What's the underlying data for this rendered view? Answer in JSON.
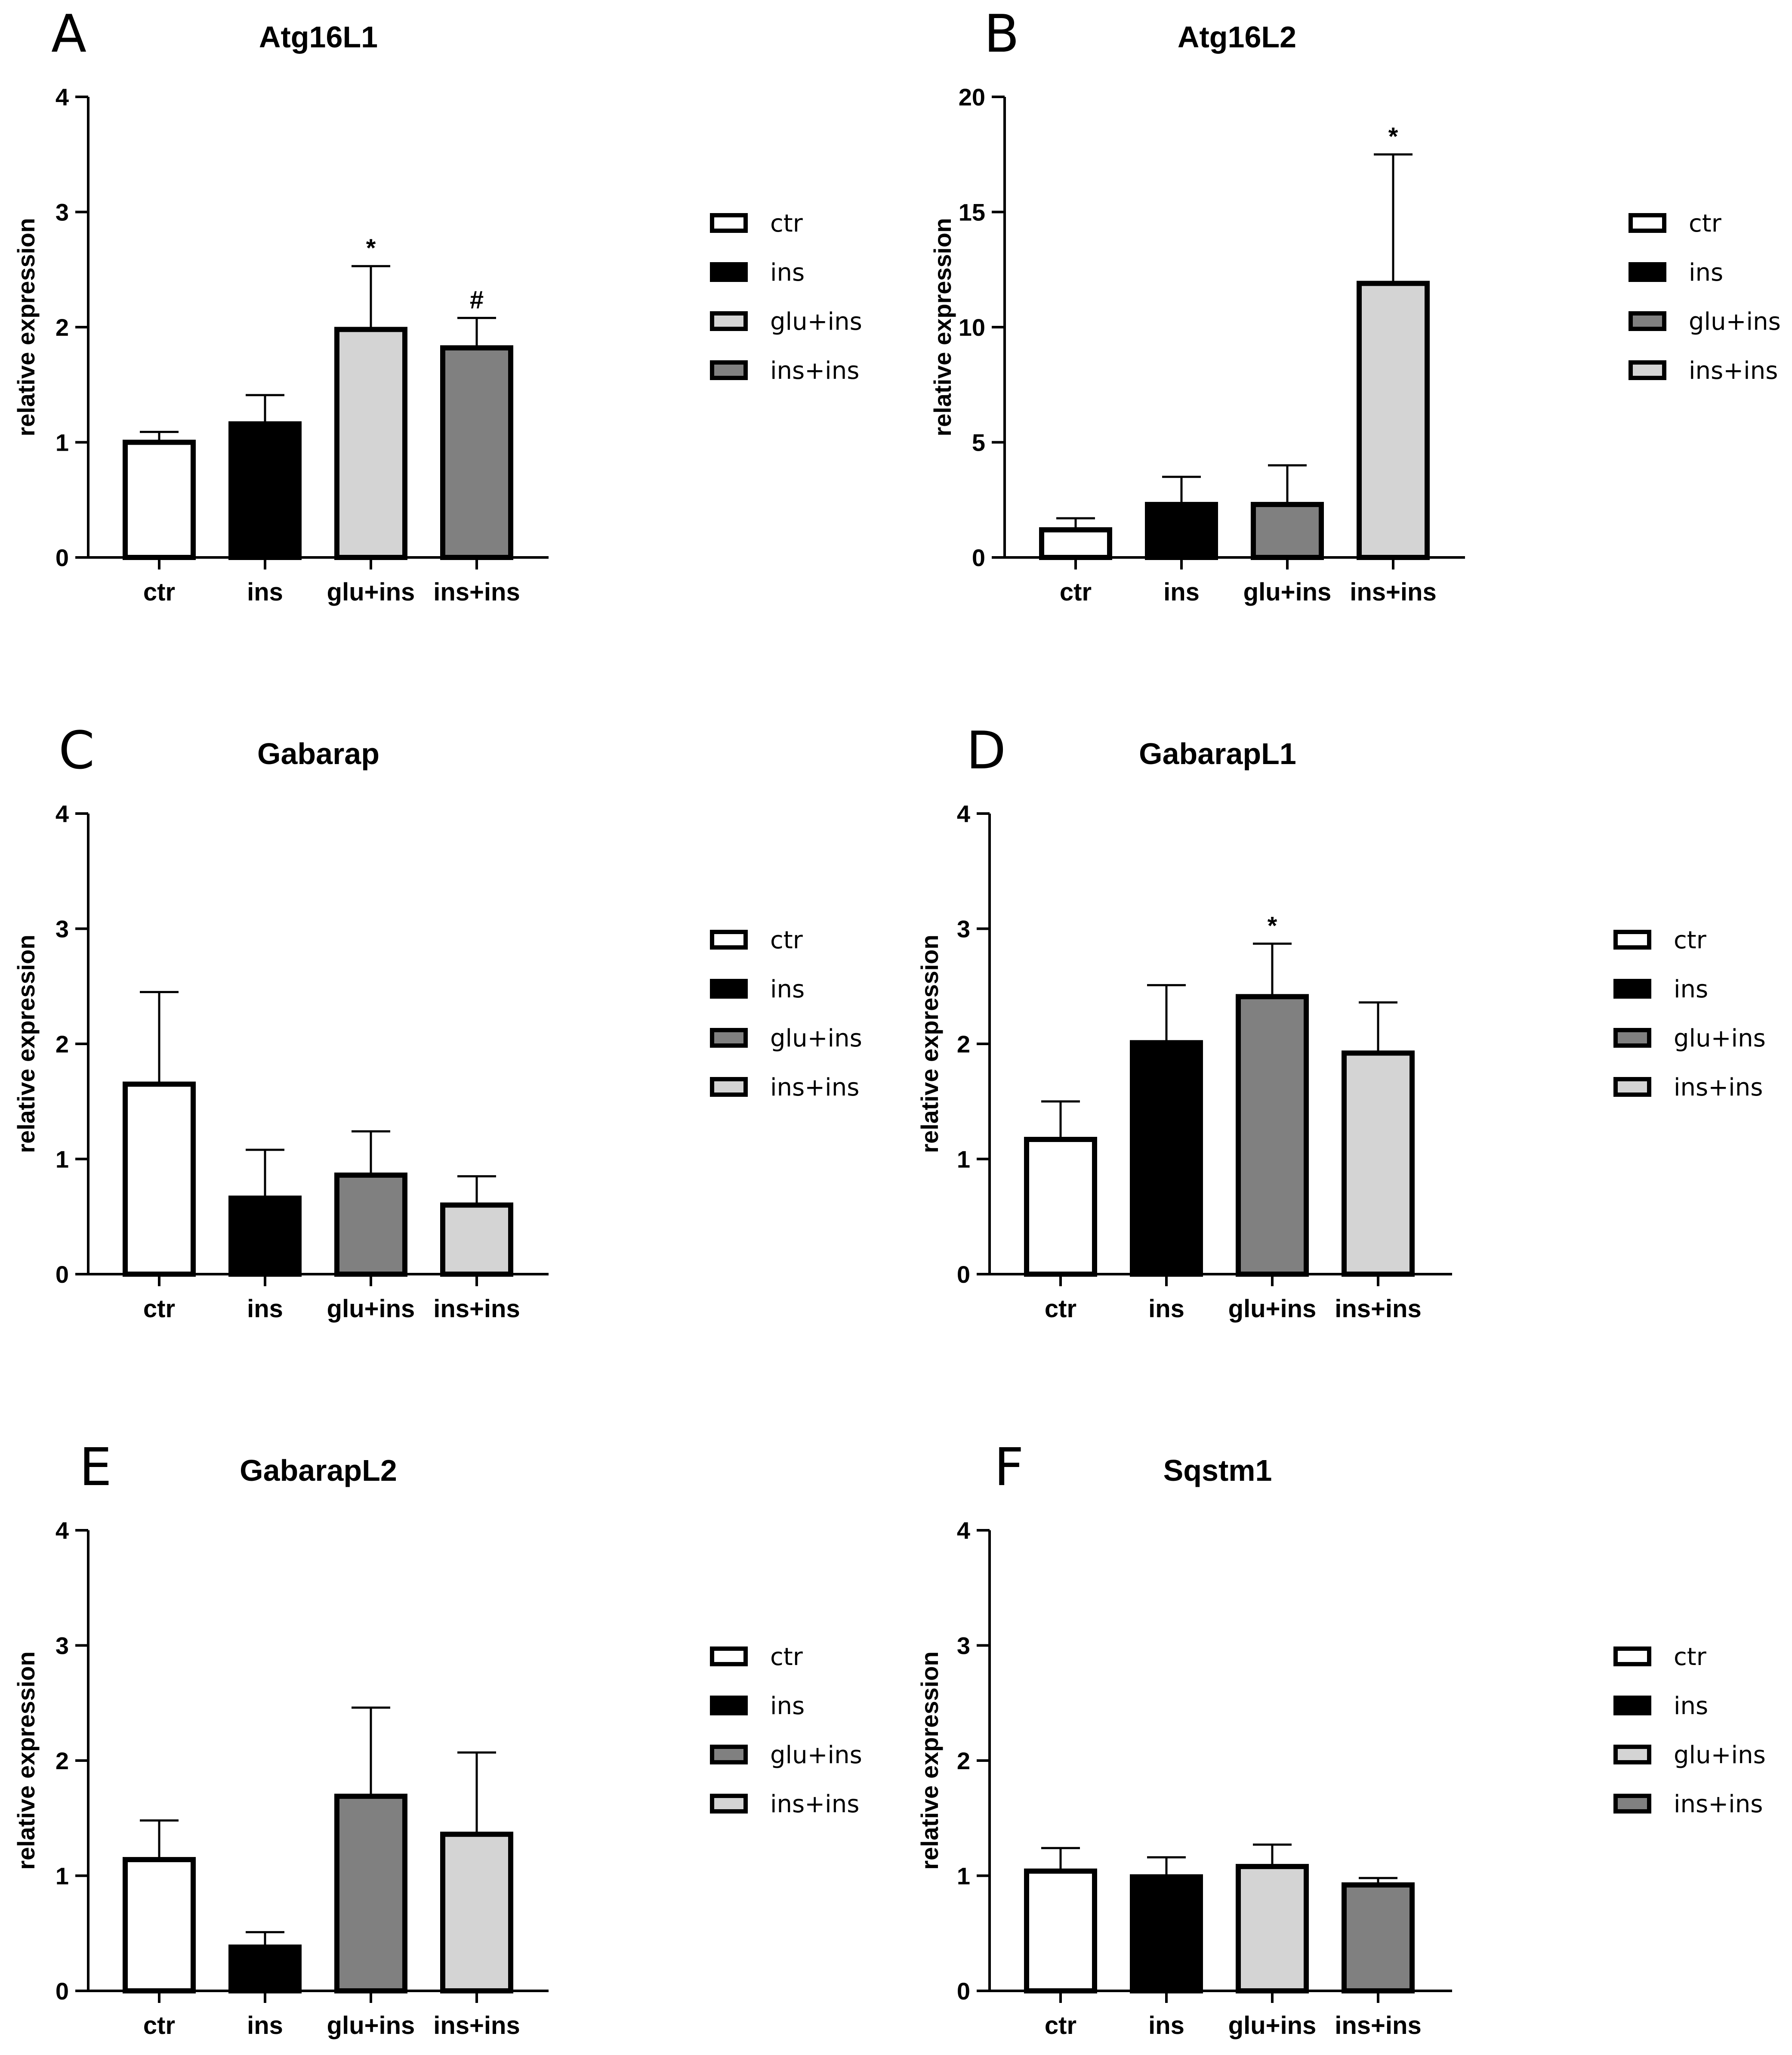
{
  "colors": {
    "ctr": "#ffffff",
    "ins": "#000000",
    "dark_gray": "#808080",
    "light_gray": "#d4d4d4",
    "stroke": "#000000"
  },
  "chart_data": [
    {
      "type": "bar",
      "panel": "A",
      "title": "Atg16L1",
      "ylabel": "relative expression",
      "xlabel": "",
      "ylim": [
        0,
        4
      ],
      "yticks": [
        "0",
        "1",
        "2",
        "3",
        "4"
      ],
      "categories": [
        "ctr",
        "ins",
        "glu+ins",
        "ins+ins"
      ],
      "values": [
        1.0,
        1.16,
        1.98,
        1.82
      ],
      "errors": [
        0.09,
        0.25,
        0.55,
        0.26
      ],
      "annotations": [
        "",
        "",
        "*",
        "#"
      ],
      "fills": [
        "#ffffff",
        "#000000",
        "#d4d4d4",
        "#808080"
      ],
      "legend": [
        {
          "label": "ctr",
          "color": "#ffffff"
        },
        {
          "label": "ins",
          "color": "#000000"
        },
        {
          "label": "glu+ins",
          "color": "#d4d4d4"
        },
        {
          "label": "ins+ins",
          "color": "#808080"
        }
      ]
    },
    {
      "type": "bar",
      "panel": "B",
      "title": "Atg16L2",
      "ylabel": "relative expression",
      "xlabel": "",
      "ylim": [
        0,
        20
      ],
      "yticks": [
        "0",
        "5",
        "10",
        "15",
        "20"
      ],
      "categories": [
        "ctr",
        "ins",
        "glu+ins",
        "ins+ins"
      ],
      "values": [
        1.2,
        2.3,
        2.3,
        11.9
      ],
      "errors": [
        0.5,
        1.2,
        1.7,
        5.6
      ],
      "annotations": [
        "",
        "",
        "",
        "*"
      ],
      "fills": [
        "#ffffff",
        "#000000",
        "#808080",
        "#d4d4d4"
      ],
      "legend": [
        {
          "label": "ctr",
          "color": "#ffffff"
        },
        {
          "label": "ins",
          "color": "#000000"
        },
        {
          "label": "glu+ins",
          "color": "#808080"
        },
        {
          "label": "ins+ins",
          "color": "#d4d4d4"
        }
      ]
    },
    {
      "type": "bar",
      "panel": "C",
      "title": "Gabarap",
      "ylabel": "relative expression",
      "xlabel": "",
      "ylim": [
        0,
        4
      ],
      "yticks": [
        "0",
        "1",
        "2",
        "3",
        "4"
      ],
      "categories": [
        "ctr",
        "ins",
        "glu+ins",
        "ins+ins"
      ],
      "values": [
        1.65,
        0.66,
        0.86,
        0.6
      ],
      "errors": [
        0.8,
        0.42,
        0.38,
        0.25
      ],
      "annotations": [
        "",
        "",
        "",
        ""
      ],
      "fills": [
        "#ffffff",
        "#000000",
        "#808080",
        "#d4d4d4"
      ],
      "legend": [
        {
          "label": "ctr",
          "color": "#ffffff"
        },
        {
          "label": "ins",
          "color": "#000000"
        },
        {
          "label": "glu+ins",
          "color": "#808080"
        },
        {
          "label": "ins+ins",
          "color": "#d4d4d4"
        }
      ]
    },
    {
      "type": "bar",
      "panel": "D",
      "title": "GabarapL1",
      "ylabel": "relative expression",
      "xlabel": "",
      "ylim": [
        0,
        4
      ],
      "yticks": [
        "0",
        "1",
        "2",
        "3",
        "4"
      ],
      "categories": [
        "ctr",
        "ins",
        "glu+ins",
        "ins+ins"
      ],
      "values": [
        1.17,
        2.01,
        2.41,
        1.92
      ],
      "errors": [
        0.33,
        0.5,
        0.46,
        0.44
      ],
      "annotations": [
        "",
        "",
        "*",
        ""
      ],
      "fills": [
        "#ffffff",
        "#000000",
        "#808080",
        "#d4d4d4"
      ],
      "legend": [
        {
          "label": "ctr",
          "color": "#ffffff"
        },
        {
          "label": "ins",
          "color": "#000000"
        },
        {
          "label": "glu+ins",
          "color": "#808080"
        },
        {
          "label": "ins+ins",
          "color": "#d4d4d4"
        }
      ]
    },
    {
      "type": "bar",
      "panel": "E",
      "title": "GabarapL2",
      "ylabel": "relative expression",
      "xlabel": "",
      "ylim": [
        0,
        4
      ],
      "yticks": [
        "0",
        "1",
        "2",
        "3",
        "4"
      ],
      "categories": [
        "ctr",
        "ins",
        "glu+ins",
        "ins+ins"
      ],
      "values": [
        1.14,
        0.38,
        1.69,
        1.36
      ],
      "errors": [
        0.34,
        0.13,
        0.77,
        0.71
      ],
      "annotations": [
        "",
        "",
        "",
        ""
      ],
      "fills": [
        "#ffffff",
        "#000000",
        "#808080",
        "#d4d4d4"
      ],
      "legend": [
        {
          "label": "ctr",
          "color": "#ffffff"
        },
        {
          "label": "ins",
          "color": "#000000"
        },
        {
          "label": "glu+ins",
          "color": "#808080"
        },
        {
          "label": "ins+ins",
          "color": "#d4d4d4"
        }
      ]
    },
    {
      "type": "bar",
      "panel": "F",
      "title": "Sqstm1",
      "ylabel": "relative expression",
      "xlabel": "",
      "ylim": [
        0,
        4
      ],
      "yticks": [
        "0",
        "1",
        "2",
        "3",
        "4"
      ],
      "categories": [
        "ctr",
        "ins",
        "glu+ins",
        "ins+ins"
      ],
      "values": [
        1.04,
        0.99,
        1.08,
        0.92
      ],
      "errors": [
        0.2,
        0.17,
        0.19,
        0.06
      ],
      "annotations": [
        "",
        "",
        "",
        ""
      ],
      "fills": [
        "#ffffff",
        "#000000",
        "#d4d4d4",
        "#808080"
      ],
      "legend": [
        {
          "label": "ctr",
          "color": "#ffffff"
        },
        {
          "label": "ins",
          "color": "#000000"
        },
        {
          "label": "glu+ins",
          "color": "#d4d4d4"
        },
        {
          "label": "ins+ins",
          "color": "#808080"
        }
      ]
    }
  ]
}
